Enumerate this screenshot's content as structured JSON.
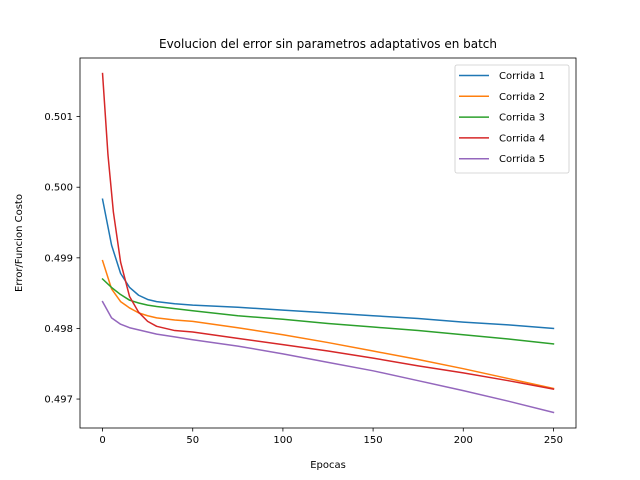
{
  "chart_data": {
    "type": "line",
    "title": "Evolucion del error sin parametros adaptativos en batch",
    "xlabel": "Epocas",
    "ylabel": "Error/Funcion Costo",
    "xlim": [
      -12.5,
      262.5
    ],
    "ylim": [
      0.49659,
      0.50183
    ],
    "xticks": [
      0,
      50,
      100,
      150,
      200,
      250
    ],
    "yticks": [
      0.497,
      0.498,
      0.499,
      0.5,
      0.501
    ],
    "ytick_labels": [
      "0.497",
      "0.498",
      "0.499",
      "0.500",
      "0.501"
    ],
    "grid": false,
    "legend_position": "upper right",
    "series": [
      {
        "name": "Corrida 1",
        "color": "#1f77b4",
        "x": [
          0,
          5,
          10,
          15,
          20,
          25,
          30,
          40,
          50,
          75,
          100,
          125,
          150,
          175,
          200,
          225,
          250
        ],
        "y": [
          0.49983,
          0.49918,
          0.49878,
          0.49858,
          0.49847,
          0.49841,
          0.49838,
          0.49835,
          0.49833,
          0.4983,
          0.49826,
          0.49822,
          0.49818,
          0.49814,
          0.49809,
          0.49805,
          0.498
        ]
      },
      {
        "name": "Corrida 2",
        "color": "#ff7f0e",
        "x": [
          0,
          5,
          10,
          15,
          20,
          25,
          30,
          40,
          50,
          75,
          100,
          125,
          150,
          175,
          200,
          225,
          250
        ],
        "y": [
          0.49896,
          0.49856,
          0.49838,
          0.49829,
          0.49822,
          0.49818,
          0.49815,
          0.49812,
          0.4981,
          0.49801,
          0.49791,
          0.4978,
          0.49768,
          0.49756,
          0.49743,
          0.49729,
          0.49715
        ]
      },
      {
        "name": "Corrida 3",
        "color": "#2ca02c",
        "x": [
          0,
          5,
          10,
          15,
          20,
          25,
          30,
          40,
          50,
          75,
          100,
          125,
          150,
          175,
          200,
          225,
          250
        ],
        "y": [
          0.4987,
          0.49858,
          0.49848,
          0.4984,
          0.49836,
          0.49833,
          0.49831,
          0.49828,
          0.49825,
          0.49818,
          0.49813,
          0.49807,
          0.49802,
          0.49797,
          0.49791,
          0.49785,
          0.49778
        ]
      },
      {
        "name": "Corrida 4",
        "color": "#d62728",
        "x": [
          0,
          3,
          6,
          10,
          15,
          20,
          25,
          30,
          40,
          50,
          75,
          100,
          125,
          150,
          175,
          200,
          225,
          250
        ],
        "y": [
          0.50161,
          0.50046,
          0.49965,
          0.49894,
          0.49845,
          0.49823,
          0.4981,
          0.49803,
          0.49797,
          0.49795,
          0.49786,
          0.49777,
          0.49768,
          0.49758,
          0.49747,
          0.49737,
          0.49726,
          0.49714
        ]
      },
      {
        "name": "Corrida 5",
        "color": "#9467bd",
        "x": [
          0,
          5,
          10,
          15,
          20,
          25,
          30,
          40,
          50,
          75,
          100,
          125,
          150,
          175,
          200,
          225,
          250
        ],
        "y": [
          0.49838,
          0.49815,
          0.49806,
          0.49801,
          0.49798,
          0.49795,
          0.49792,
          0.49788,
          0.49784,
          0.49775,
          0.49764,
          0.49752,
          0.4974,
          0.49726,
          0.49712,
          0.49697,
          0.49681
        ]
      }
    ]
  }
}
